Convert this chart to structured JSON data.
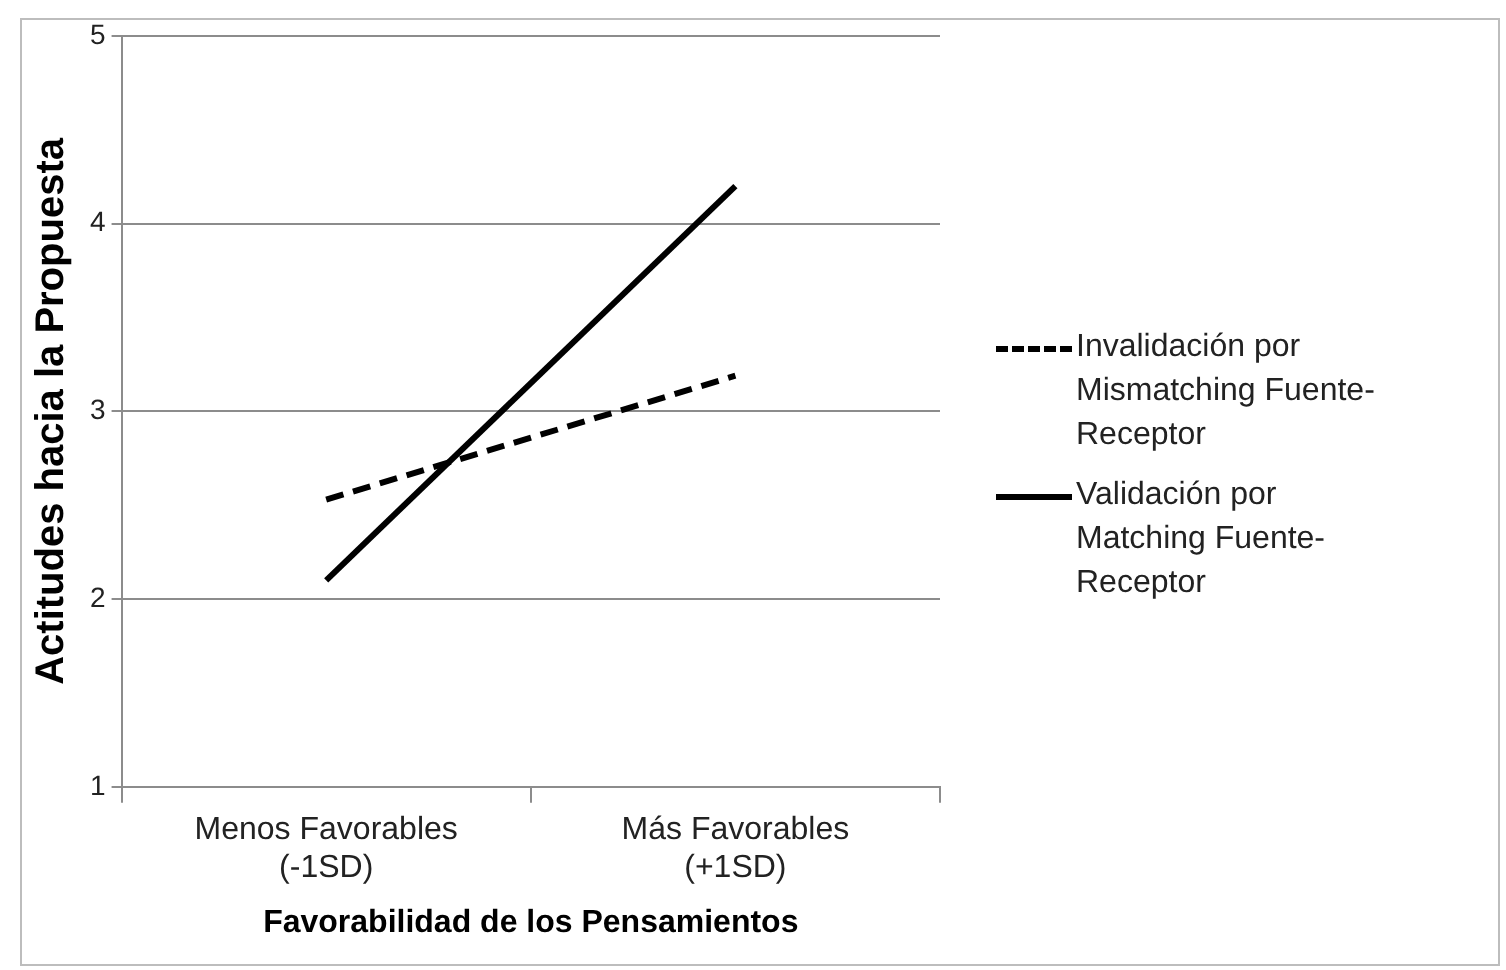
{
  "chart_data": {
    "type": "line",
    "xlabel": "Favorabilidad de los Pensamientos",
    "ylabel": "Actitudes hacia la Propuesta",
    "categories": [
      "Menos Favorables\n(-1SD)",
      "Más Favorables\n(+1SD)"
    ],
    "series": [
      {
        "name": "Invalidación por Mismatching Fuente-Receptor",
        "color": "#000000",
        "line_style": "dashed",
        "values": [
          2.53,
          3.19
        ]
      },
      {
        "name": "Validación por Matching Fuente-Receptor",
        "color": "#000000",
        "line_style": "solid",
        "values": [
          2.1,
          4.2
        ]
      }
    ],
    "ylim": [
      1,
      5
    ],
    "yticks": [
      1,
      2,
      3,
      4,
      5
    ],
    "grid": "y",
    "legend": "right",
    "marker": "none"
  }
}
